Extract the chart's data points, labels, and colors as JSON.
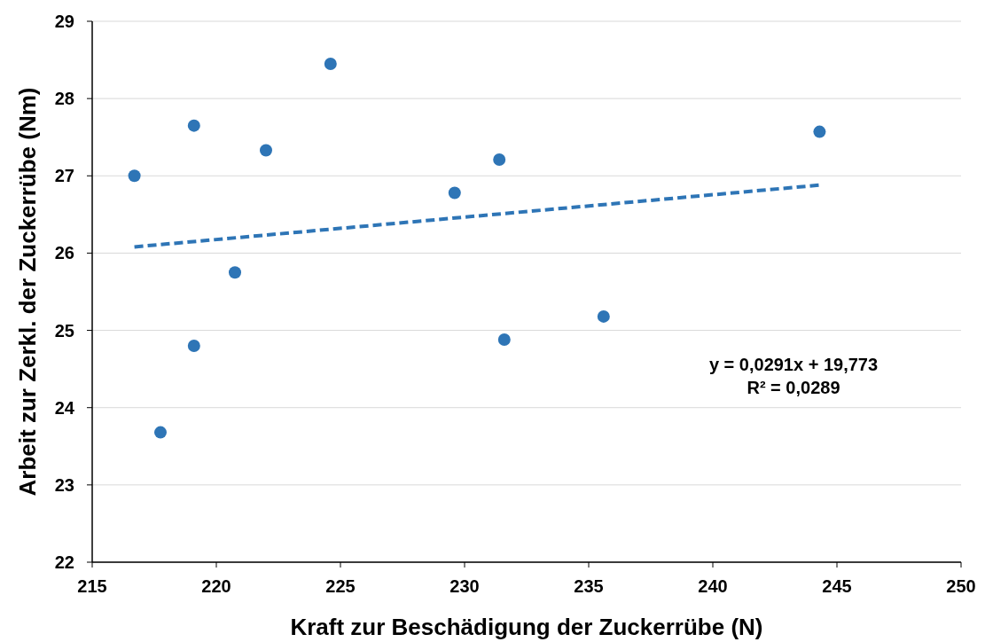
{
  "chart_data": {
    "type": "scatter",
    "xlabel": "Kraft zur Beschädigung der Zuckerrübe (N)",
    "ylabel": "Arbeit zur Zerkl. der Zuckerrübe (Nm)",
    "xlim": [
      215,
      250
    ],
    "xticks": [
      215,
      220,
      225,
      230,
      235,
      240,
      245,
      250
    ],
    "ylim": [
      22,
      29
    ],
    "yticks": [
      22,
      23,
      24,
      25,
      26,
      27,
      28,
      29
    ],
    "grid": "y",
    "series": [
      {
        "marker": "circle",
        "color": "#2e75b6",
        "x": [
          216.7,
          217.75,
          219.1,
          219.1,
          220.75,
          222.0,
          224.6,
          229.6,
          231.4,
          231.6,
          235.6,
          244.3
        ],
        "values": [
          27.0,
          23.68,
          27.65,
          24.8,
          25.75,
          27.33,
          28.45,
          26.78,
          27.21,
          24.88,
          25.18,
          27.57
        ]
      },
      {
        "type": "line",
        "color": "#2e75b6",
        "line_style": "dashed",
        "x": [
          216.7,
          244.3
        ],
        "values": [
          26.08,
          26.88
        ]
      }
    ],
    "annotations": [
      "y = 0,0291x + 19,773",
      "R² = 0,0289"
    ]
  }
}
